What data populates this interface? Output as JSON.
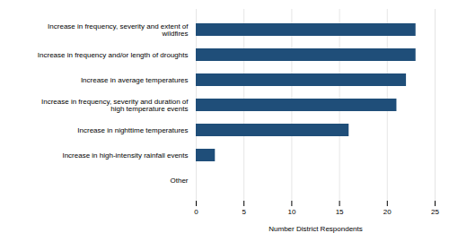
{
  "chart_data": {
    "type": "bar",
    "orientation": "horizontal",
    "categories": [
      "Other",
      "Increase in high-intensity rainfall events",
      "Increase in nighttime temperatures",
      "Increase in frequency, severity and duration of\nhigh temperature events",
      "Increase in average temperatures",
      "Increase in frequency and/or length of droughts",
      "Increase in frequency, severity and extent of\nwildfires"
    ],
    "values": [
      0,
      2,
      16,
      21,
      22,
      23,
      23
    ],
    "color": "#1f4e79",
    "xlabel": "Number District Respondents",
    "xlim": [
      0,
      25
    ],
    "xticks": [
      0,
      5,
      10,
      15,
      20,
      25
    ],
    "grid": true
  }
}
